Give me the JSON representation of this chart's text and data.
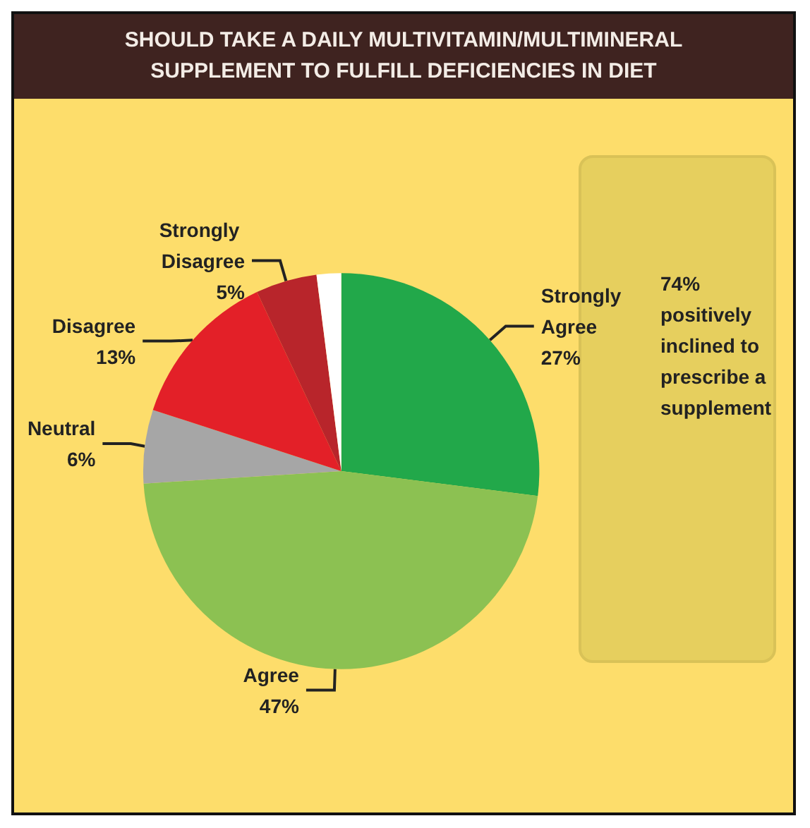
{
  "chart_data": {
    "type": "pie",
    "title": "SHOULD TAKE A DAILY MULTIVITAMIN/MULTIMINERAL\nSUPPLEMENT TO FULFILL DEFICIENCIES IN DIET",
    "categories": [
      "Strongly Agree",
      "Agree",
      "Neutral",
      "Disagree",
      "Strongly Disagree",
      null
    ],
    "values": [
      27,
      47,
      6,
      13,
      5,
      2
    ],
    "colors": [
      "#22a84a",
      "#8cc152",
      "#a6a6a6",
      "#e32028",
      "#b8252b",
      "#ffffff"
    ],
    "value_labels": [
      "27%",
      "47%",
      "6%",
      "13%",
      "5%",
      null
    ],
    "annotations": [
      "74% positively inclined to prescribe a supplement"
    ],
    "legend": false
  }
}
